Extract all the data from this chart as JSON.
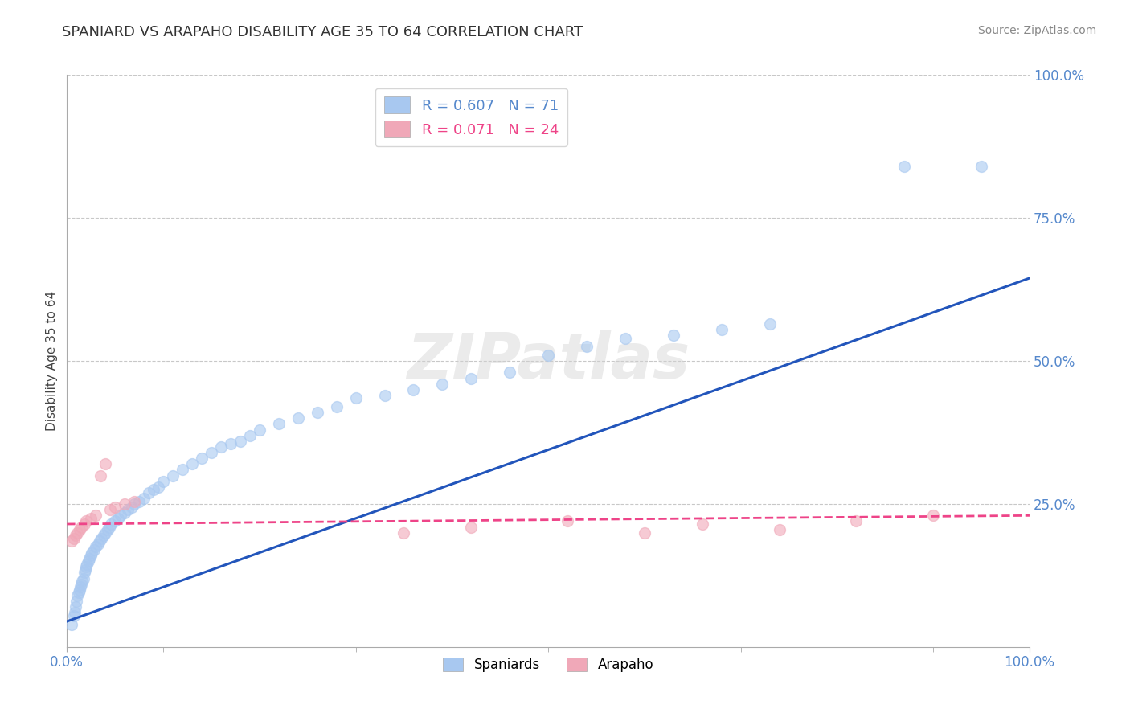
{
  "title": "SPANIARD VS ARAPAHO DISABILITY AGE 35 TO 64 CORRELATION CHART",
  "source": "Source: ZipAtlas.com",
  "ylabel": "Disability Age 35 to 64",
  "xlim": [
    0.0,
    1.0
  ],
  "ylim": [
    0.0,
    1.0
  ],
  "ytick_positions": [
    0.25,
    0.5,
    0.75,
    1.0
  ],
  "grid_color": "#c8c8c8",
  "background_color": "#ffffff",
  "spaniard_color": "#a8c8f0",
  "arapaho_color": "#f0a8b8",
  "spaniard_line_color": "#2255bb",
  "arapaho_line_color": "#ee4488",
  "R_spaniard": 0.607,
  "N_spaniard": 71,
  "R_arapaho": 0.071,
  "N_arapaho": 24,
  "watermark": "ZIPatlas",
  "tick_color": "#5588cc",
  "spaniard_scatter_x": [
    0.005,
    0.007,
    0.008,
    0.009,
    0.01,
    0.011,
    0.012,
    0.013,
    0.014,
    0.015,
    0.016,
    0.017,
    0.018,
    0.019,
    0.02,
    0.021,
    0.022,
    0.023,
    0.025,
    0.026,
    0.028,
    0.03,
    0.032,
    0.034,
    0.036,
    0.038,
    0.04,
    0.042,
    0.044,
    0.046,
    0.05,
    0.053,
    0.056,
    0.06,
    0.063,
    0.067,
    0.07,
    0.075,
    0.08,
    0.085,
    0.09,
    0.095,
    0.1,
    0.11,
    0.12,
    0.13,
    0.14,
    0.15,
    0.16,
    0.17,
    0.18,
    0.19,
    0.2,
    0.22,
    0.24,
    0.26,
    0.28,
    0.3,
    0.33,
    0.36,
    0.39,
    0.42,
    0.46,
    0.5,
    0.54,
    0.58,
    0.63,
    0.68,
    0.73,
    0.87,
    0.95
  ],
  "spaniard_scatter_y": [
    0.04,
    0.055,
    0.06,
    0.07,
    0.08,
    0.09,
    0.095,
    0.1,
    0.105,
    0.11,
    0.115,
    0.12,
    0.13,
    0.135,
    0.14,
    0.145,
    0.15,
    0.155,
    0.16,
    0.165,
    0.17,
    0.175,
    0.18,
    0.185,
    0.19,
    0.195,
    0.2,
    0.205,
    0.21,
    0.215,
    0.22,
    0.225,
    0.23,
    0.235,
    0.24,
    0.245,
    0.25,
    0.255,
    0.26,
    0.27,
    0.275,
    0.28,
    0.29,
    0.3,
    0.31,
    0.32,
    0.33,
    0.34,
    0.35,
    0.355,
    0.36,
    0.37,
    0.38,
    0.39,
    0.4,
    0.41,
    0.42,
    0.435,
    0.44,
    0.45,
    0.46,
    0.47,
    0.48,
    0.51,
    0.525,
    0.54,
    0.545,
    0.555,
    0.565,
    0.84,
    0.84
  ],
  "arapaho_scatter_x": [
    0.005,
    0.007,
    0.009,
    0.011,
    0.013,
    0.015,
    0.018,
    0.02,
    0.025,
    0.03,
    0.035,
    0.04,
    0.045,
    0.05,
    0.06,
    0.07,
    0.35,
    0.42,
    0.52,
    0.6,
    0.66,
    0.74,
    0.82,
    0.9
  ],
  "arapaho_scatter_y": [
    0.185,
    0.19,
    0.195,
    0.2,
    0.205,
    0.21,
    0.215,
    0.22,
    0.225,
    0.23,
    0.3,
    0.32,
    0.24,
    0.245,
    0.25,
    0.255,
    0.2,
    0.21,
    0.22,
    0.2,
    0.215,
    0.205,
    0.22,
    0.23
  ],
  "sp_line_x0": 0.0,
  "sp_line_y0": 0.045,
  "sp_line_x1": 1.0,
  "sp_line_y1": 0.645,
  "ap_line_x0": 0.0,
  "ap_line_y0": 0.215,
  "ap_line_x1": 1.0,
  "ap_line_y1": 0.23
}
